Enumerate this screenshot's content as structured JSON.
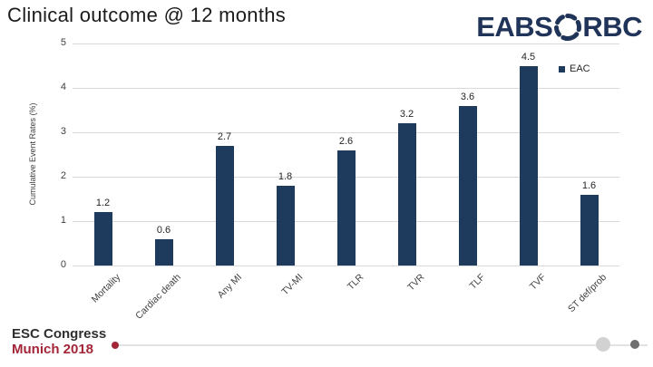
{
  "slide": {
    "title": "Clinical outcome @ 12 months"
  },
  "logo": {
    "text_left": "EABS",
    "text_right": "RBC",
    "color": "#203358"
  },
  "legend": {
    "label": "EAC",
    "swatch_color": "#1e3a5c"
  },
  "chart_data": {
    "type": "bar",
    "title": "Clinical outcome @ 12 months",
    "categories": [
      "Mortality",
      "Cardiac death",
      "Any MI",
      "TV-MI",
      "TLR",
      "TVR",
      "TLF",
      "TVF",
      "ST def/prob"
    ],
    "values": [
      1.2,
      0.6,
      2.7,
      1.8,
      2.6,
      3.2,
      3.6,
      4.5,
      1.6
    ],
    "series": [
      {
        "name": "EAC",
        "values": [
          1.2,
          0.6,
          2.7,
          1.8,
          2.6,
          3.2,
          3.6,
          4.5,
          1.6
        ]
      }
    ],
    "xlabel": "",
    "ylabel": "Cumulative Event Rates (%)",
    "ylim": [
      0,
      5
    ],
    "ytick_step": 1,
    "yticks": [
      0,
      1,
      2,
      3,
      4,
      5
    ],
    "grid": true,
    "legend_entries": [
      "EAC"
    ],
    "legend_position": "top-right",
    "bar_color": "#1e3a5c",
    "gridline_color": "#d9d9d9",
    "data_labels": true
  },
  "footer": {
    "congress": "ESC Congress",
    "location": "Munich 2018"
  },
  "pagination": {
    "marker_color": "#a32638",
    "dot_light_color": "#d2d2d2",
    "dot_dark_color": "#707070"
  }
}
